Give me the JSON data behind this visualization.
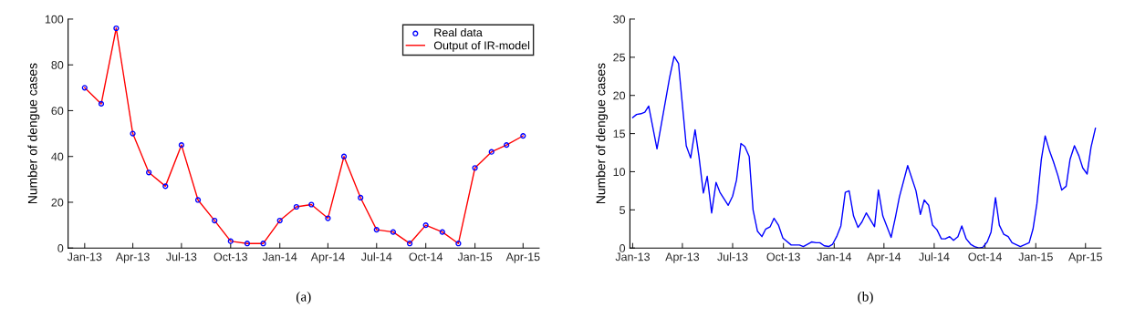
{
  "chart_data": [
    {
      "type": "line",
      "ylabel": "Number of dengue cases",
      "annotations": [
        "(a)"
      ],
      "legend": "top right",
      "grid": false,
      "x": [
        "2013-01-01",
        "2013-02-01",
        "2013-03-01",
        "2013-04-01",
        "2013-05-01",
        "2013-06-01",
        "2013-07-01",
        "2013-08-01",
        "2013-09-01",
        "2013-10-01",
        "2013-11-01",
        "2013-12-01",
        "2014-01-01",
        "2014-02-01",
        "2014-03-01",
        "2014-04-01",
        "2014-05-01",
        "2014-06-01",
        "2014-07-01",
        "2014-08-01",
        "2014-09-01",
        "2014-10-01",
        "2014-11-01",
        "2014-12-01",
        "2015-01-01",
        "2015-02-01",
        "2015-03-01",
        "2015-04-01"
      ],
      "series": [
        {
          "name": "Real data",
          "type": "scatter",
          "marker": "circle",
          "color": "#0000ff",
          "values": [
            70,
            63,
            96,
            50,
            33,
            27,
            45,
            21,
            12,
            3,
            2,
            2,
            12,
            18,
            19,
            13,
            40,
            22,
            8,
            7,
            2,
            10,
            7,
            2,
            35,
            42,
            45,
            49
          ]
        },
        {
          "name": "Output of IR-model",
          "type": "line",
          "marker": "none",
          "color": "#ff0000",
          "values": [
            70,
            63,
            96,
            50,
            33,
            27,
            45,
            21,
            12,
            3,
            2,
            2,
            12,
            18,
            19,
            13,
            40,
            22,
            8,
            7,
            2,
            10,
            7,
            2,
            35,
            42,
            45,
            49
          ]
        }
      ],
      "xlim": [
        "2012-12-01",
        "2015-05-01"
      ],
      "xticks": [
        {
          "value": "2013-01-01",
          "label": "Jan-13"
        },
        {
          "value": "2013-04-01",
          "label": "Apr-13"
        },
        {
          "value": "2013-07-01",
          "label": "Jul-13"
        },
        {
          "value": "2013-10-01",
          "label": "Oct-13"
        },
        {
          "value": "2014-01-01",
          "label": "Jan-14"
        },
        {
          "value": "2014-04-01",
          "label": "Apr-14"
        },
        {
          "value": "2014-07-01",
          "label": "Jul-14"
        },
        {
          "value": "2014-10-01",
          "label": "Oct-14"
        },
        {
          "value": "2015-01-01",
          "label": "Jan-15"
        },
        {
          "value": "2015-04-01",
          "label": "Apr-15"
        }
      ],
      "ylim": [
        0,
        100
      ],
      "yticks": [
        0,
        20,
        40,
        60,
        80,
        100
      ]
    },
    {
      "type": "line",
      "ylabel": "Number of dengue cases",
      "annotations": [
        "(b)"
      ],
      "grid": false,
      "x": [
        "2013-01-01",
        "2013-01-08",
        "2013-01-16",
        "2013-01-23",
        "2013-01-30",
        "2013-02-14",
        "2013-03-09",
        "2013-03-17",
        "2013-03-25",
        "2013-04-08",
        "2013-04-16",
        "2013-04-24",
        "2013-05-01",
        "2013-05-09",
        "2013-05-16",
        "2013-05-24",
        "2013-06-01",
        "2013-06-08",
        "2013-06-23",
        "2013-07-01",
        "2013-07-08",
        "2013-07-16",
        "2013-07-23",
        "2013-07-31",
        "2013-08-07",
        "2013-08-15",
        "2013-08-23",
        "2013-08-30",
        "2013-09-07",
        "2013-09-14",
        "2013-09-22",
        "2013-09-30",
        "2013-10-15",
        "2013-10-30",
        "2013-11-06",
        "2013-11-21",
        "2013-11-29",
        "2013-12-06",
        "2013-12-14",
        "2013-12-22",
        "2013-12-29",
        "2014-01-06",
        "2014-01-13",
        "2014-01-21",
        "2014-01-28",
        "2014-02-05",
        "2014-02-13",
        "2014-02-20",
        "2014-02-28",
        "2014-03-15",
        "2014-03-22",
        "2014-03-30",
        "2014-04-14",
        "2014-04-22",
        "2014-04-29",
        "2014-05-14",
        "2014-05-29",
        "2014-06-06",
        "2014-06-13",
        "2014-06-21",
        "2014-06-28",
        "2014-07-06",
        "2014-07-14",
        "2014-07-21",
        "2014-07-29",
        "2014-08-05",
        "2014-08-13",
        "2014-08-20",
        "2014-08-28",
        "2014-09-05",
        "2014-09-12",
        "2014-09-20",
        "2014-09-27",
        "2014-10-05",
        "2014-10-12",
        "2014-10-20",
        "2014-10-27",
        "2014-11-04",
        "2014-11-12",
        "2014-11-19",
        "2014-12-04",
        "2014-12-20",
        "2014-12-27",
        "2015-01-03",
        "2015-01-11",
        "2015-01-18",
        "2015-01-26",
        "2015-02-02",
        "2015-02-10",
        "2015-02-17",
        "2015-02-25",
        "2015-03-04",
        "2015-03-12",
        "2015-03-20",
        "2015-03-27",
        "2015-04-04",
        "2015-04-11",
        "2015-04-19"
      ],
      "series": [
        {
          "color": "#0000ff",
          "values": [
            17.1,
            17.5,
            17.6,
            17.8,
            18.6,
            13.0,
            22.4,
            25.1,
            24.2,
            13.4,
            11.8,
            15.5,
            12.0,
            7.2,
            9.4,
            4.6,
            8.6,
            7.3,
            5.6,
            6.8,
            8.9,
            13.7,
            13.3,
            12.0,
            5.0,
            2.2,
            1.5,
            2.5,
            2.8,
            3.9,
            3.0,
            1.3,
            0.4,
            0.4,
            0.2,
            0.8,
            0.7,
            0.7,
            0.3,
            0.2,
            0.5,
            1.6,
            2.9,
            7.3,
            7.5,
            4.2,
            2.7,
            3.4,
            4.6,
            2.8,
            7.6,
            4.2,
            1.4,
            4.1,
            6.7,
            10.8,
            7.5,
            4.4,
            6.3,
            5.6,
            3.0,
            2.4,
            1.2,
            1.2,
            1.5,
            1.0,
            1.5,
            2.9,
            1.2,
            0.5,
            0.2,
            0.0,
            0.1,
            0.8,
            2.1,
            6.6,
            3.0,
            1.8,
            1.5,
            0.7,
            0.2,
            0.7,
            2.5,
            5.8,
            11.6,
            14.7,
            12.7,
            11.3,
            9.5,
            7.6,
            8.1,
            11.6,
            13.4,
            12.1,
            10.5,
            9.7,
            13.2,
            15.7
          ]
        }
      ],
      "xlim": [
        "2012-12-27",
        "2015-04-29"
      ],
      "xticks": [
        {
          "value": "2013-01-01",
          "label": "Jan-13"
        },
        {
          "value": "2013-04-01",
          "label": "Apr-13"
        },
        {
          "value": "2013-07-01",
          "label": "Jul-13"
        },
        {
          "value": "2013-10-01",
          "label": "Oct-13"
        },
        {
          "value": "2014-01-01",
          "label": "Jan-14"
        },
        {
          "value": "2014-04-01",
          "label": "Apr-14"
        },
        {
          "value": "2014-07-01",
          "label": "Jul-14"
        },
        {
          "value": "2014-10-01",
          "label": "Oct-14"
        },
        {
          "value": "2015-01-01",
          "label": "Jan-15"
        },
        {
          "value": "2015-04-01",
          "label": "Apr-15"
        }
      ],
      "ylim": [
        0,
        30
      ],
      "yticks": [
        0,
        5,
        10,
        15,
        20,
        25,
        30
      ]
    }
  ]
}
